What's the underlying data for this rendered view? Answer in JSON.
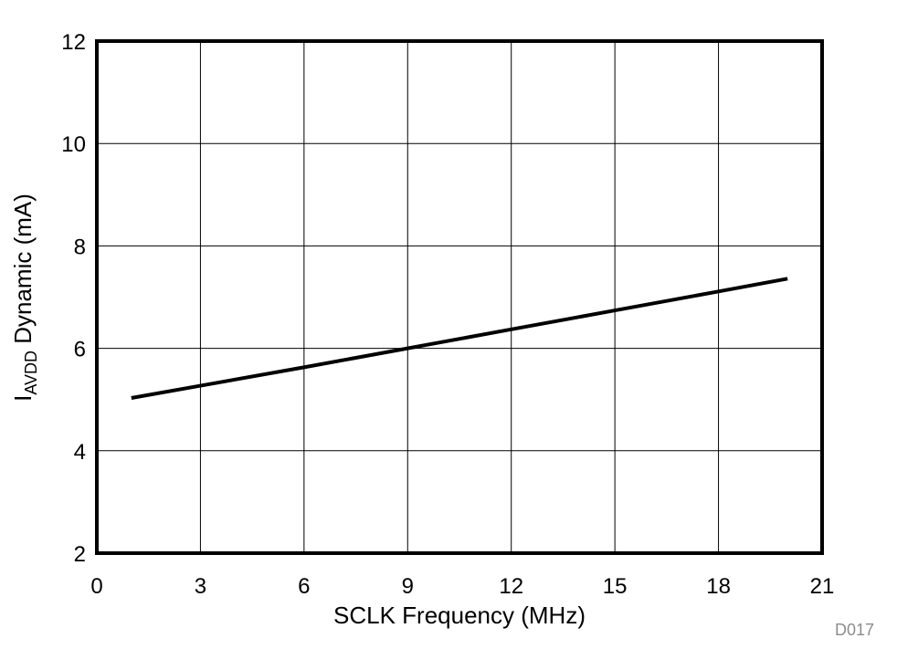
{
  "chart_data": {
    "type": "line",
    "title": "",
    "xlabel": "SCLK Frequency (MHz)",
    "ylabel": "I_AVDD Dynamic (mA)",
    "ylabel_parts": {
      "main": "I",
      "sub": "AVDD",
      "rest": " Dynamic (mA)"
    },
    "xlim": [
      0,
      21
    ],
    "ylim": [
      2,
      12
    ],
    "xticks": [
      0,
      3,
      6,
      9,
      12,
      15,
      18,
      21
    ],
    "yticks": [
      2,
      4,
      6,
      8,
      10,
      12
    ],
    "grid": true,
    "legend": null,
    "series": [
      {
        "name": "IAVDD Dynamic",
        "color": "#000000",
        "x": [
          1,
          3,
          6,
          9,
          12,
          15,
          18,
          20
        ],
        "y": [
          5.03,
          5.27,
          5.63,
          6.0,
          6.37,
          6.74,
          7.11,
          7.36
        ]
      }
    ],
    "annotation": "D017"
  }
}
